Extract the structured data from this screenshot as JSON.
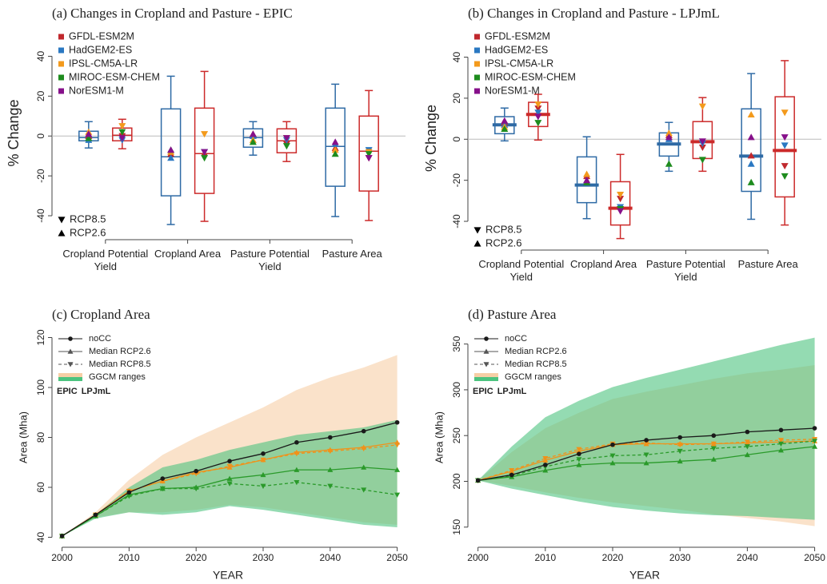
{
  "chart_data": [
    {
      "type": "box",
      "title": "(a) Changes in Cropland and Pasture - EPIC",
      "ylabel": "% Change",
      "categories": [
        "Cropland Potential Yield",
        "Cropland Area",
        "Pasture Potential Yield",
        "Pasture Area"
      ],
      "ylim": [
        -52,
        55
      ],
      "yticks": [
        -40,
        -20,
        0,
        20,
        40
      ],
      "reference_line": 0,
      "thick_median": false,
      "models": [
        {
          "name": "GFDL-ESM2M",
          "color": "#c0282d"
        },
        {
          "name": "HadGEM2-ES",
          "color": "#2a78c2"
        },
        {
          "name": "IPSL-CM5A-LR",
          "color": "#f39a1c"
        },
        {
          "name": "MIROC-ESM-CHEM",
          "color": "#1e8c1e"
        },
        {
          "name": "NorESM1-M",
          "color": "#86108a"
        }
      ],
      "series": [
        {
          "name": "RCP2.6",
          "color": "#2e6aa5",
          "marker": "up",
          "min": [
            -6,
            -44.4,
            -9.6,
            -40.4
          ],
          "q1": [
            -2.4,
            -30,
            -5.6,
            -25.2
          ],
          "median": [
            -0.8,
            -10.4,
            -0.8,
            -5.2
          ],
          "q3": [
            2.4,
            13.6,
            3.6,
            14
          ],
          "max": [
            7.2,
            30,
            7.2,
            26
          ],
          "points": [
            [
              0,
              -2,
              2,
              -1,
              1
            ],
            [
              -9,
              -11,
              -8,
              -7,
              -7
            ],
            [
              1,
              0,
              -2,
              -3,
              1
            ],
            [
              -6,
              -4,
              -7,
              -9,
              -3
            ]
          ]
        },
        {
          "name": "RCP8.5",
          "color": "#cc2a2a",
          "marker": "down",
          "min": [
            -6.4,
            -42.8,
            -12.8,
            -42.4
          ],
          "q1": [
            -2.4,
            -28.8,
            -8.4,
            -27.6
          ],
          "median": [
            0.4,
            -8.8,
            -2.4,
            -7.6
          ],
          "q3": [
            4,
            14,
            3.6,
            10
          ],
          "max": [
            8.4,
            32.4,
            7.2,
            22.8
          ],
          "points": [
            [
              0,
              -2,
              5,
              2,
              -1
            ],
            [
              -10,
              -8,
              1,
              -11,
              -8
            ],
            [
              -4,
              -2,
              -1,
              -5,
              -1
            ],
            [
              -11,
              -7,
              -8,
              -9,
              -11
            ]
          ]
        }
      ]
    },
    {
      "type": "box",
      "title": "(b) Changes in Cropland and Pasture - LPJmL",
      "ylabel": "% Change",
      "categories": [
        "Cropland Potential Yield",
        "Cropland Area",
        "Pasture Potential Yield",
        "Pasture Area"
      ],
      "ylim": [
        -54,
        55
      ],
      "yticks": [
        -40,
        -20,
        0,
        20,
        40
      ],
      "reference_line": 0,
      "thick_median": true,
      "models": [
        {
          "name": "GFDL-ESM2M",
          "color": "#c0282d"
        },
        {
          "name": "HadGEM2-ES",
          "color": "#2a78c2"
        },
        {
          "name": "IPSL-CM5A-LR",
          "color": "#f39a1c"
        },
        {
          "name": "MIROC-ESM-CHEM",
          "color": "#1e8c1e"
        },
        {
          "name": "NorESM1-M",
          "color": "#86108a"
        }
      ],
      "series": [
        {
          "name": "RCP2.6",
          "color": "#2e6aa5",
          "marker": "up",
          "min": [
            -0.8,
            -38.7,
            -15.6,
            -39
          ],
          "q1": [
            2.7,
            -30.9,
            -8.2,
            -25.4
          ],
          "median": [
            7,
            -22.3,
            -2.3,
            -8.2
          ],
          "q3": [
            11,
            -8.6,
            3.1,
            14.8
          ],
          "max": [
            15.2,
            1.2,
            8.2,
            32
          ],
          "points": [
            [
              8,
              7,
              6,
              5,
              9
            ],
            [
              -18,
              -20,
              -17,
              -21,
              -20
            ],
            [
              2,
              0,
              3,
              -12,
              1
            ],
            [
              -8,
              -12,
              12,
              -21,
              1
            ]
          ]
        },
        {
          "name": "RCP8.5",
          "color": "#cc2a2a",
          "marker": "down",
          "min": [
            -0.4,
            -48.4,
            -15.6,
            -41.8
          ],
          "q1": [
            6.2,
            -41.8,
            -9.4,
            -28.1
          ],
          "median": [
            12.1,
            -33.6,
            -1.2,
            -5.5
          ],
          "q3": [
            18,
            -20.7,
            8.6,
            20.7
          ],
          "max": [
            21.9,
            -7.4,
            20.3,
            38.3
          ],
          "points": [
            [
              15,
              13,
              17,
              8,
              11
            ],
            [
              -29,
              -33,
              -27,
              -34,
              -35
            ],
            [
              -4,
              -2,
              16,
              -10,
              -1
            ],
            [
              -13,
              -3,
              13,
              -18,
              1
            ]
          ]
        }
      ]
    },
    {
      "type": "line",
      "title": "(c) Cropland Area",
      "xlabel": "YEAR",
      "ylabel": "Area (Mha)",
      "x": [
        2000,
        2005,
        2010,
        2015,
        2020,
        2025,
        2030,
        2035,
        2040,
        2045,
        2050
      ],
      "xlim": [
        1998.5,
        2051
      ],
      "xticks": [
        2000,
        2010,
        2020,
        2030,
        2040,
        2050
      ],
      "ylim": [
        36,
        124
      ],
      "yticks": [
        40,
        60,
        80,
        100,
        120
      ],
      "legend": [
        {
          "label": "noCC",
          "dash": false,
          "marker": "circle"
        },
        {
          "label": "Median RCP2.6",
          "dash": false,
          "marker": "up"
        },
        {
          "label": "Median RCP8.5",
          "dash": true,
          "marker": "down"
        },
        {
          "label": "GGCM ranges",
          "marker": "band"
        }
      ],
      "nocc": {
        "color": "#1a1a1a",
        "values": [
          40.5,
          49,
          58,
          63.5,
          66.5,
          70.5,
          73.5,
          78,
          80,
          82.5,
          86
        ]
      },
      "models": [
        {
          "name": "EPIC",
          "color": "#f0921a",
          "band_color": "#f7cfa6",
          "rcp26": [
            40.5,
            49,
            58.5,
            62.5,
            66,
            68,
            71,
            74,
            75,
            76,
            78
          ],
          "rcp85": [
            40.5,
            49,
            58.5,
            62.5,
            65.5,
            68.5,
            71,
            73.5,
            74.5,
            75.5,
            77
          ],
          "range_low": [
            40.5,
            48,
            50,
            50,
            51,
            53,
            52,
            50,
            48,
            46,
            45
          ],
          "range_high": [
            40.5,
            50,
            63,
            73,
            80,
            86,
            92,
            99,
            104,
            108,
            113
          ]
        },
        {
          "name": "LPJmL",
          "color": "#2a9a2a",
          "band_color": "#4cc37f",
          "rcp26": [
            40.5,
            48.5,
            57,
            59.5,
            60,
            63.5,
            65,
            67,
            67,
            68,
            67
          ],
          "rcp85": [
            40.5,
            48.5,
            56.5,
            59.5,
            59.5,
            61.5,
            60.5,
            62,
            60.5,
            59,
            57
          ],
          "range_low": [
            40.5,
            47.5,
            50,
            49,
            50,
            52.5,
            51,
            49,
            47,
            45,
            44
          ],
          "range_high": [
            40.5,
            49,
            60,
            68,
            71,
            75,
            78,
            81,
            82.5,
            84,
            87
          ]
        }
      ]
    },
    {
      "type": "line",
      "title": "(d) Pasture Area",
      "xlabel": "YEAR",
      "ylabel": "Area (Mha)",
      "x": [
        2000,
        2005,
        2010,
        2015,
        2020,
        2025,
        2030,
        2035,
        2040,
        2045,
        2050
      ],
      "xlim": [
        1998.5,
        2051
      ],
      "xticks": [
        2000,
        2010,
        2020,
        2030,
        2040,
        2050
      ],
      "ylim": [
        128,
        368
      ],
      "yticks": [
        150,
        200,
        250,
        300,
        350
      ],
      "legend": [
        {
          "label": "noCC",
          "dash": false,
          "marker": "circle"
        },
        {
          "label": "Median RCP2.6",
          "dash": false,
          "marker": "up"
        },
        {
          "label": "Median RCP8.5",
          "dash": true,
          "marker": "down"
        },
        {
          "label": "GGCM ranges",
          "marker": "band"
        }
      ],
      "nocc": {
        "color": "#1a1a1a",
        "values": [
          201,
          207,
          218,
          230,
          240,
          245,
          248,
          250,
          254,
          256,
          258
        ]
      },
      "models": [
        {
          "name": "EPIC",
          "color": "#f0921a",
          "band_color": "#f7cfa6",
          "rcp26": [
            201,
            211,
            223,
            233,
            240,
            241,
            241,
            241,
            242,
            243,
            244
          ],
          "rcp85": [
            201,
            212,
            225,
            235,
            241,
            242,
            240,
            241,
            243,
            245,
            246
          ],
          "range_low": [
            201,
            195,
            188,
            182,
            177,
            173,
            169,
            164,
            160,
            156,
            151
          ],
          "range_high": [
            201,
            232,
            258,
            275,
            290,
            298,
            305,
            312,
            318,
            322,
            327
          ]
        },
        {
          "name": "LPJmL",
          "color": "#2a9a2a",
          "band_color": "#4cc37f",
          "rcp26": [
            201,
            205,
            212,
            218,
            220,
            220,
            222,
            224,
            229,
            234,
            238
          ],
          "rcp85": [
            201,
            206,
            216,
            224,
            228,
            229,
            233,
            236,
            238,
            241,
            244
          ],
          "range_low": [
            201,
            192,
            185,
            178,
            172,
            168,
            165,
            163,
            162,
            160,
            158
          ],
          "range_high": [
            201,
            238,
            270,
            288,
            303,
            313,
            322,
            331,
            340,
            349,
            357
          ]
        }
      ]
    }
  ]
}
